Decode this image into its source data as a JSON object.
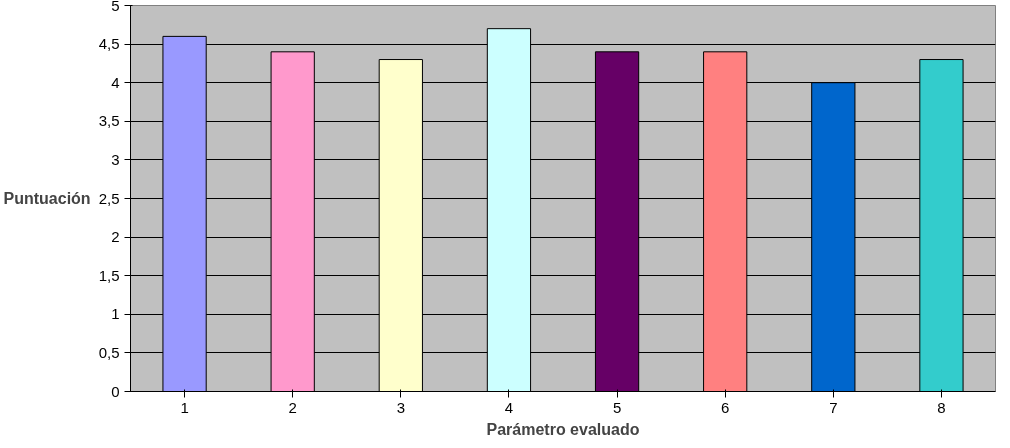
{
  "chart_data": {
    "type": "bar",
    "xlabel": "Parámetro evaluado",
    "ylabel": "Puntuación",
    "categories": [
      "1",
      "2",
      "3",
      "4",
      "5",
      "6",
      "7",
      "8"
    ],
    "values": [
      4.6,
      4.4,
      4.3,
      4.7,
      4.4,
      4.4,
      4.0,
      4.3
    ],
    "colors": [
      "#9999ff",
      "#ff99cc",
      "#ffffcc",
      "#ccffff",
      "#660066",
      "#ff8080",
      "#0066cc",
      "#33cccc"
    ],
    "ylim": [
      0,
      5
    ],
    "yticks": [
      0,
      {
        "value": 0.5,
        "label": "0,5"
      },
      1,
      {
        "value": 1.5,
        "label": "1,5"
      },
      2,
      {
        "value": 2.5,
        "label": "2,5"
      },
      3,
      {
        "value": 3.5,
        "label": "3,5"
      },
      4,
      {
        "value": 4.5,
        "label": "4,5"
      },
      5
    ],
    "grid": "y"
  }
}
